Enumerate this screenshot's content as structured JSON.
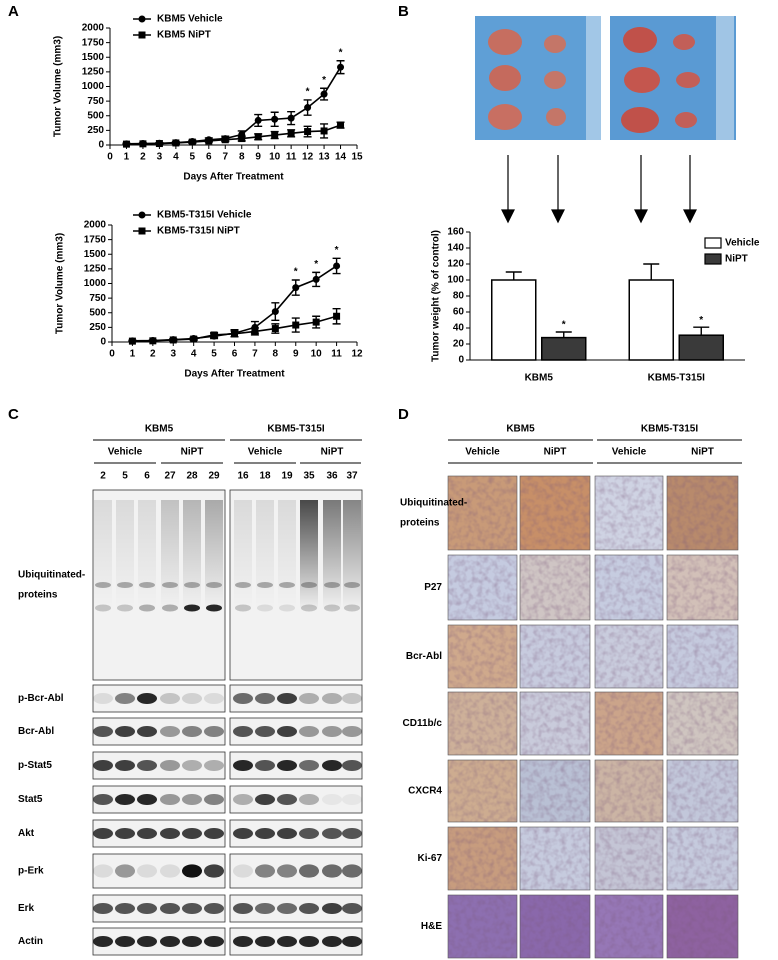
{
  "panel_labels": [
    "A",
    "B",
    "C",
    "D"
  ],
  "chart_data": [
    {
      "type": "line",
      "x_label": "Days After Treatment",
      "y_label": "Tumor Volume (mm3)",
      "x": [
        1,
        2,
        3,
        4,
        5,
        6,
        7,
        8,
        9,
        10,
        11,
        12,
        13,
        14
      ],
      "xlim": [
        0,
        15
      ],
      "xticks": [
        0,
        1,
        2,
        3,
        4,
        5,
        6,
        7,
        8,
        9,
        10,
        11,
        12,
        13,
        14,
        15
      ],
      "ylim": [
        0,
        2000
      ],
      "yticks": [
        0,
        250,
        500,
        750,
        1000,
        1250,
        1500,
        1750,
        2000
      ],
      "series": [
        {
          "name": "KBM5 Vehicle",
          "color": "#000000",
          "marker": "circle",
          "values": [
            20,
            25,
            30,
            40,
            60,
            90,
            110,
            180,
            420,
            440,
            460,
            640,
            870,
            1330
          ],
          "errors": [
            10,
            10,
            10,
            15,
            20,
            30,
            40,
            60,
            100,
            120,
            110,
            130,
            100,
            110
          ]
        },
        {
          "name": "KBM5 NiPT",
          "color": "#000000",
          "marker": "square",
          "values": [
            15,
            20,
            25,
            35,
            50,
            70,
            90,
            110,
            140,
            170,
            200,
            230,
            240,
            340
          ],
          "errors": [
            10,
            10,
            10,
            15,
            20,
            20,
            30,
            40,
            50,
            60,
            60,
            90,
            120,
            50
          ]
        }
      ],
      "annotations": [
        {
          "x": 12,
          "text": "*"
        },
        {
          "x": 13,
          "text": "*"
        },
        {
          "x": 14,
          "text": "*"
        }
      ]
    },
    {
      "type": "line",
      "x_label": "Days After Treatment",
      "y_label": "Tumor Volume (mm3)",
      "x": [
        1,
        2,
        3,
        4,
        5,
        6,
        7,
        8,
        9,
        10,
        11
      ],
      "xlim": [
        0,
        12
      ],
      "xticks": [
        0,
        1,
        2,
        3,
        4,
        5,
        6,
        7,
        8,
        9,
        10,
        11,
        12
      ],
      "ylim": [
        0,
        2000
      ],
      "yticks": [
        0,
        250,
        500,
        750,
        1000,
        1250,
        1500,
        1750,
        2000
      ],
      "series": [
        {
          "name": "KBM5-T315I Vehicle",
          "color": "#000000",
          "marker": "circle",
          "values": [
            20,
            25,
            40,
            60,
            100,
            150,
            250,
            520,
            930,
            1070,
            1300
          ],
          "errors": [
            10,
            10,
            15,
            20,
            40,
            60,
            100,
            150,
            130,
            120,
            130
          ]
        },
        {
          "name": "KBM5-T315I NiPT",
          "color": "#000000",
          "marker": "square",
          "values": [
            15,
            20,
            35,
            50,
            120,
            140,
            180,
            230,
            290,
            340,
            440
          ],
          "errors": [
            10,
            10,
            15,
            20,
            40,
            50,
            60,
            80,
            120,
            100,
            130
          ]
        }
      ],
      "annotations": [
        {
          "x": 9,
          "text": "*"
        },
        {
          "x": 10,
          "text": "*"
        },
        {
          "x": 11,
          "text": "*"
        }
      ]
    },
    {
      "type": "bar",
      "y_label": "Tumor weight (% of control)",
      "categories": [
        "KBM5",
        "KBM5-T315I"
      ],
      "ylim": [
        0,
        160
      ],
      "yticks": [
        0,
        20,
        40,
        60,
        80,
        100,
        120,
        140,
        160
      ],
      "series": [
        {
          "name": "Vehicle",
          "color": "#ffffff",
          "values": [
            100,
            100
          ],
          "errors": [
            10,
            20
          ]
        },
        {
          "name": "NiPT",
          "color": "#3a3a3a",
          "values": [
            28,
            31
          ],
          "errors": [
            7,
            10
          ]
        }
      ],
      "annotations": [
        {
          "category": "KBM5",
          "series": "NiPT",
          "text": "*"
        },
        {
          "category": "KBM5-T315I",
          "series": "NiPT",
          "text": "*"
        }
      ]
    }
  ],
  "blot": {
    "groups": [
      {
        "label": "KBM5",
        "subgroups": [
          {
            "label": "Vehicle",
            "samples": [
              2,
              5,
              6
            ]
          },
          {
            "label": "NiPT",
            "samples": [
              27,
              28,
              29
            ]
          }
        ]
      },
      {
        "label": "KBM5-T315I",
        "subgroups": [
          {
            "label": "Vehicle",
            "samples": [
              16,
              18,
              19
            ]
          },
          {
            "label": "NiPT",
            "samples": [
              35,
              36,
              37
            ]
          }
        ]
      }
    ],
    "rows": [
      [
        "Ubiquitinated-",
        "proteins"
      ],
      [
        "p-Bcr-Abl"
      ],
      [
        "Bcr-Abl"
      ],
      [
        "p-Stat5"
      ],
      [
        "Stat5"
      ],
      [
        "Akt"
      ],
      [
        "p-Erk"
      ],
      [
        "Erk"
      ],
      [
        "Actin"
      ]
    ]
  },
  "ihc": {
    "groups": [
      {
        "label": "KBM5",
        "subgroups": [
          {
            "label": "Vehicle"
          },
          {
            "label": "NiPT"
          }
        ]
      },
      {
        "label": "KBM5-T315I",
        "subgroups": [
          {
            "label": "Vehicle"
          },
          {
            "label": "NiPT"
          }
        ]
      }
    ],
    "rows": [
      [
        "Ubiquitinated-",
        "proteins"
      ],
      [
        "P27"
      ],
      [
        "Bcr-Abl"
      ],
      [
        "CD11b/c"
      ],
      [
        "CXCR4"
      ],
      [
        "Ki-67"
      ],
      [
        "H&E"
      ]
    ]
  }
}
